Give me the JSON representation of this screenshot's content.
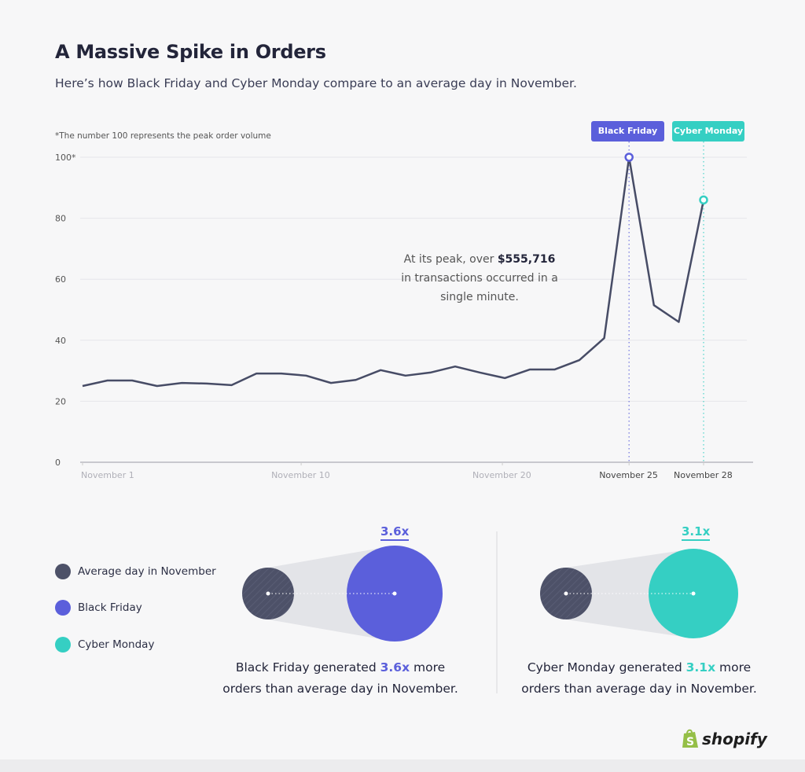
{
  "header": {
    "title": "A Massive Spike in Orders",
    "subtitle": "Here’s how Black Friday and Cyber Monday compare to an average day in November."
  },
  "chart_data": {
    "type": "line",
    "footnote": "*The number 100 represents the peak order volume",
    "ylim": [
      0,
      100
    ],
    "y_ticks": [
      "0",
      "20",
      "40",
      "60",
      "80",
      "100*"
    ],
    "y_tick_values": [
      0,
      20,
      40,
      60,
      80,
      100
    ],
    "x_ticks": [
      "November 1",
      "November 10",
      "November 20",
      "November 25",
      "November 28"
    ],
    "grid": true,
    "values": [
      25,
      26.8,
      26.8,
      25,
      26,
      25.8,
      25.3,
      29.1,
      29.1,
      28.4,
      26,
      27,
      30.2,
      28.4,
      29.4,
      31.4,
      29.4,
      27.6,
      30.4,
      30.4,
      33.5,
      40.7,
      100,
      51.5,
      46,
      86
    ],
    "markers": [
      {
        "label": "Black Friday",
        "date": "November 25",
        "value": 100,
        "color": "#5b5fdb"
      },
      {
        "label": "Cyber Monday",
        "date": "November 28",
        "value": 86,
        "color": "#35cfc3"
      }
    ],
    "annotation": {
      "pre": "At its peak, over ",
      "amount": "$555,716",
      "post": "in transactions occurred in a single minute."
    },
    "line_color": "#474c66"
  },
  "legend": [
    {
      "label": "Average day in November",
      "color": "#4d5168"
    },
    {
      "label": "Black Friday",
      "color": "#5b5fdb"
    },
    {
      "label": "Cyber Monday",
      "color": "#35cfc3"
    }
  ],
  "comparisons": [
    {
      "multiplier": "3.6x",
      "value": 3.6,
      "color": "#5b5fdb",
      "pre": "Black Friday generated ",
      "post": " more",
      "line2": "orders than average day in November."
    },
    {
      "multiplier": "3.1x",
      "value": 3.1,
      "color": "#35cfc3",
      "pre": "Cyber Monday generated ",
      "post": " more",
      "line2": "orders than average day in November."
    }
  ],
  "logo": {
    "text": "shopify",
    "color": "#95bf47"
  }
}
